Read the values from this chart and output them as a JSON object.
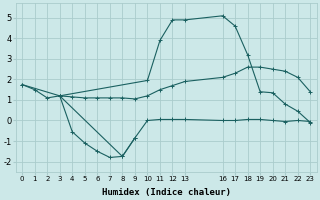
{
  "xlabel": "Humidex (Indice chaleur)",
  "bg_color": "#cce8e8",
  "grid_color": "#aacccc",
  "line_color": "#1a6060",
  "xlim": [
    -0.5,
    23.5
  ],
  "ylim": [
    -2.5,
    5.7
  ],
  "xtick_positions": [
    0,
    1,
    2,
    3,
    4,
    5,
    6,
    7,
    8,
    9,
    10,
    11,
    12,
    13,
    16,
    17,
    18,
    19,
    20,
    21,
    22,
    23
  ],
  "xtick_labels": [
    "0",
    "1",
    "2",
    "3",
    "4",
    "5",
    "6",
    "7",
    "8",
    "9",
    "10",
    "11",
    "12",
    "13",
    "16",
    "17",
    "18",
    "19",
    "20",
    "21",
    "22",
    "23"
  ],
  "ytick_positions": [
    -2,
    -1,
    0,
    1,
    2,
    3,
    4,
    5
  ],
  "ytick_labels": [
    "-2",
    "-1",
    "0",
    "1",
    "2",
    "3",
    "4",
    "5"
  ],
  "line1_x": [
    0,
    1,
    2,
    3,
    4,
    5,
    6,
    7,
    8,
    9,
    10,
    11,
    12,
    13,
    16,
    17,
    18,
    19,
    20,
    21,
    22,
    23
  ],
  "line1_y": [
    1.75,
    1.5,
    1.1,
    1.2,
    1.15,
    1.1,
    1.1,
    1.1,
    1.1,
    1.05,
    1.2,
    1.5,
    1.7,
    1.9,
    2.1,
    2.3,
    2.6,
    2.6,
    2.5,
    2.4,
    2.1,
    1.4
  ],
  "line2_x": [
    0,
    3,
    4,
    5,
    6,
    7,
    8,
    9,
    10,
    11,
    12,
    13,
    16,
    17,
    18,
    19,
    20,
    21,
    22,
    23
  ],
  "line2_y": [
    1.75,
    1.2,
    -0.55,
    -1.1,
    -1.5,
    -1.8,
    -1.75,
    -0.85,
    0.0,
    0.05,
    0.05,
    0.05,
    0.0,
    0.0,
    0.05,
    0.05,
    0.0,
    -0.05,
    0.0,
    -0.05
  ],
  "line3_x": [
    3,
    10,
    11,
    12,
    13,
    16,
    17,
    18,
    19,
    20,
    21,
    22,
    23
  ],
  "line3_y": [
    1.2,
    1.95,
    3.9,
    4.9,
    4.9,
    5.1,
    4.6,
    3.2,
    1.4,
    1.35,
    0.8,
    0.45,
    -0.1
  ],
  "line4_x": [
    3,
    8,
    9
  ],
  "line4_y": [
    1.2,
    -1.75,
    -0.85
  ],
  "marker": "+",
  "markersize": 3,
  "linewidth": 0.8
}
